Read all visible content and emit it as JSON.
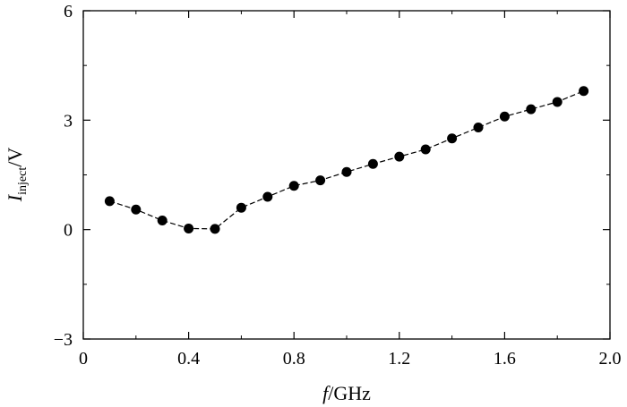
{
  "chart_data": {
    "type": "line",
    "xlabel_var": "f",
    "xlabel_unit": "/GHz",
    "ylabel_var": "I",
    "ylabel_sub": "inject",
    "ylabel_unit": "/V",
    "xlim": [
      0,
      2.0
    ],
    "ylim": [
      -3,
      6
    ],
    "xticks": [
      0,
      0.4,
      0.8,
      1.2,
      1.6,
      2.0
    ],
    "xtick_labels": [
      "0",
      "0.4",
      "0.8",
      "1.2",
      "1.6",
      "2.0"
    ],
    "yticks": [
      -3,
      0,
      3,
      6
    ],
    "ytick_labels": [
      "−3",
      "0",
      "3",
      "6"
    ],
    "grid": false,
    "series": [
      {
        "x": [
          0.1,
          0.2,
          0.3,
          0.4,
          0.5,
          0.6,
          0.7,
          0.8,
          0.9,
          1.0,
          1.1,
          1.2,
          1.3,
          1.4,
          1.5,
          1.6,
          1.7,
          1.8,
          1.9
        ],
        "y": [
          0.78,
          0.55,
          0.25,
          0.03,
          0.02,
          0.6,
          0.9,
          1.2,
          1.35,
          1.58,
          1.8,
          2.0,
          2.2,
          2.5,
          2.8,
          3.1,
          3.3,
          3.5,
          3.8
        ],
        "color": "#000000"
      }
    ]
  }
}
